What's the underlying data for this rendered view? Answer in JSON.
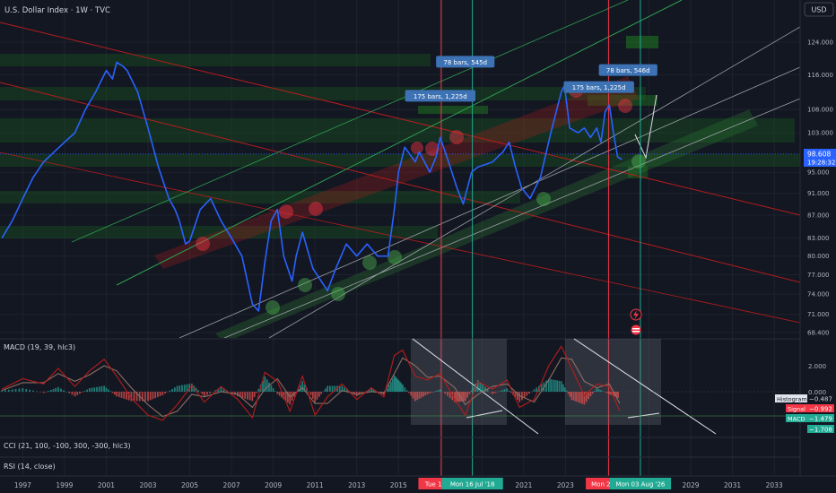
{
  "header": {
    "title": "U.S. Dollar Index · 1W · TVC",
    "currency_button": "USD"
  },
  "chart_data": {
    "type": "line",
    "title": "U.S. Dollar Index · 1W · TVC",
    "y_axis": {
      "unit": "USD",
      "scale": "log",
      "range": [
        68.4,
        128
      ],
      "ticks": [
        "124.000",
        "116.000",
        "108.000",
        "103.000",
        "95.000",
        "91.000",
        "87.000",
        "83.000",
        "80.000",
        "77.000",
        "74.000",
        "71.000",
        "68.400"
      ],
      "tick_values": [
        124,
        116,
        108,
        103,
        95,
        91,
        87,
        83,
        80,
        77,
        74,
        71,
        68.4
      ]
    },
    "x_axis": {
      "range": [
        1996.0,
        2034.0
      ],
      "ticks": [
        "1997",
        "1999",
        "2001",
        "2003",
        "2005",
        "2007",
        "2009",
        "2011",
        "2013",
        "2015",
        "2017",
        "2019",
        "2021",
        "2023",
        "2025",
        "2027",
        "2029",
        "2031",
        "2033"
      ],
      "tick_values": [
        1997,
        1999,
        2001,
        2003,
        2005,
        2007,
        2009,
        2011,
        2013,
        2015,
        2017,
        2019,
        2021,
        2023,
        2025,
        2027,
        2029,
        2031,
        2033
      ],
      "highlighted_labels": [
        {
          "text": "Tue 17 Jan",
          "x": 2017.05,
          "color": "#f23645"
        },
        {
          "text": "Mon 16 Jul '18",
          "x": 2018.54,
          "color": "#22ab94"
        },
        {
          "text": "Mon 27 Jan",
          "x": 2025.07,
          "color": "#f23645"
        },
        {
          "text": "Mon 03 Aug '26",
          "x": 2026.59,
          "color": "#22ab94"
        }
      ]
    },
    "series": [
      {
        "color": "#2962ff",
        "x": [
          1996.0,
          1996.5,
          1997.0,
          1997.5,
          1998.0,
          1998.5,
          1999.0,
          1999.5,
          2000.0,
          2000.5,
          2001.0,
          2001.3,
          2001.5,
          2001.8,
          2002.0,
          2002.5,
          2003.0,
          2003.5,
          2004.0,
          2004.3,
          2004.5,
          2004.8,
          2005.0,
          2005.5,
          2006.0,
          2006.5,
          2007.0,
          2007.5,
          2008.0,
          2008.3,
          2008.6,
          2008.9,
          2009.2,
          2009.5,
          2009.9,
          2010.1,
          2010.4,
          2010.9,
          2011.3,
          2011.6,
          2012.0,
          2012.5,
          2013.0,
          2013.5,
          2014.0,
          2014.5,
          2014.8,
          2015.0,
          2015.3,
          2015.8,
          2016.0,
          2016.5,
          2016.8,
          2017.0,
          2017.4,
          2017.8,
          2018.1,
          2018.5,
          2018.8,
          2019.5,
          2020.0,
          2020.3,
          2020.6,
          2020.9,
          2021.3,
          2021.8,
          2022.3,
          2022.8,
          2022.95,
          2023.2,
          2023.6,
          2023.9,
          2024.2,
          2024.5,
          2024.7,
          2024.9,
          2025.1,
          2025.3,
          2025.5,
          2025.7
        ],
        "y": [
          83.0,
          86.0,
          90.0,
          94.0,
          97.0,
          99.0,
          101.0,
          103.0,
          108.0,
          112.0,
          117.0,
          115.0,
          119.0,
          118.0,
          117.0,
          112.0,
          104.0,
          96.0,
          90.0,
          88.0,
          86.0,
          82.0,
          82.5,
          88.0,
          90.0,
          86.0,
          83.0,
          80.0,
          72.5,
          71.5,
          79.0,
          86.0,
          88.0,
          80.0,
          76.0,
          80.0,
          84.0,
          78.0,
          76.0,
          74.5,
          78.0,
          82.0,
          80.0,
          82.0,
          80.0,
          80.0,
          88.0,
          95.0,
          100.0,
          97.0,
          99.0,
          95.0,
          98.0,
          102.0,
          97.0,
          92.0,
          89.0,
          95.0,
          96.0,
          97.0,
          99.0,
          101.0,
          96.0,
          92.0,
          90.0,
          94.0,
          103.0,
          112.0,
          113.5,
          104.0,
          103.0,
          104.0,
          102.0,
          104.0,
          101.0,
          107.5,
          109.0,
          103.0,
          98.0,
          97.5
        ]
      }
    ],
    "annotations": [
      {
        "text": "78 bars, 545d",
        "x": 2018.2,
        "y": 119
      },
      {
        "text": "175 bars, 1,225d",
        "x": 2017.0,
        "y": 111
      },
      {
        "text": "78 bars, 546d",
        "x": 2026.0,
        "y": 117
      },
      {
        "text": "175 bars, 1,225d",
        "x": 2024.6,
        "y": 113
      }
    ],
    "last_price": {
      "value": "98.608",
      "countdown": "19:28:32"
    },
    "vertical_markers": [
      {
        "x": 2017.05,
        "color": "#f23645"
      },
      {
        "x": 2018.54,
        "color": "#22ab94"
      },
      {
        "x": 2025.07,
        "color": "#f23645"
      },
      {
        "x": 2026.59,
        "color": "#22ab94"
      }
    ],
    "grid": true
  },
  "indicators": {
    "macd": {
      "title": "MACD (19, 39, hlc3)",
      "ticks": [
        "2.000",
        "0.000"
      ],
      "histogram_label": "Histogram",
      "histogram_value": "−0.487",
      "signal_label": "Signal",
      "signal_value": "−0.992",
      "macd_label": "MACD",
      "macd_value": "−1.479",
      "extra_value": "−1.708",
      "x": [
        1996.0,
        1997.0,
        1998.0,
        1998.7,
        1999.5,
        2000.2,
        2000.9,
        2001.5,
        2002.2,
        2003.0,
        2003.7,
        2004.4,
        2005.1,
        2005.7,
        2006.5,
        2007.3,
        2008.0,
        2008.6,
        2009.2,
        2009.8,
        2010.4,
        2011.0,
        2011.6,
        2012.3,
        2013.0,
        2013.7,
        2014.3,
        2014.8,
        2015.2,
        2015.8,
        2016.4,
        2017.0,
        2017.7,
        2018.2,
        2018.8,
        2019.5,
        2020.2,
        2020.8,
        2021.5,
        2022.2,
        2022.8,
        2023.3,
        2023.9,
        2024.5,
        2025.1,
        2025.6
      ],
      "macd": [
        0.2,
        1.0,
        0.6,
        1.8,
        0.4,
        1.6,
        2.5,
        1.2,
        -0.5,
        -1.8,
        -2.2,
        -1.0,
        0.5,
        -0.8,
        0.4,
        -0.6,
        -2.0,
        1.5,
        0.8,
        -1.5,
        1.2,
        -1.8,
        -0.4,
        0.6,
        -0.6,
        0.3,
        -0.4,
        2.8,
        3.2,
        1.2,
        0.9,
        1.4,
        -0.6,
        -1.8,
        0.8,
        0.2,
        0.9,
        -1.2,
        -0.6,
        2.0,
        3.5,
        1.8,
        -0.3,
        0.6,
        0.4,
        -1.5
      ],
      "signal": [
        0.1,
        0.7,
        0.7,
        1.4,
        0.8,
        1.3,
        2.0,
        1.6,
        0.3,
        -1.0,
        -1.9,
        -1.5,
        -0.2,
        -0.4,
        0.0,
        -0.2,
        -1.2,
        0.2,
        1.0,
        -0.4,
        0.3,
        -0.9,
        -0.9,
        0.1,
        -0.2,
        0.0,
        -0.1,
        1.4,
        2.6,
        2.0,
        1.1,
        1.2,
        0.3,
        -1.0,
        -0.2,
        0.4,
        0.6,
        -0.3,
        -0.8,
        0.9,
        2.6,
        2.5,
        0.8,
        0.3,
        0.6,
        -0.9
      ]
    },
    "cci_title": "CCI (21, 100, -100, 300, -300, hlc3)",
    "rsi_title": "RSI (14, close)"
  }
}
